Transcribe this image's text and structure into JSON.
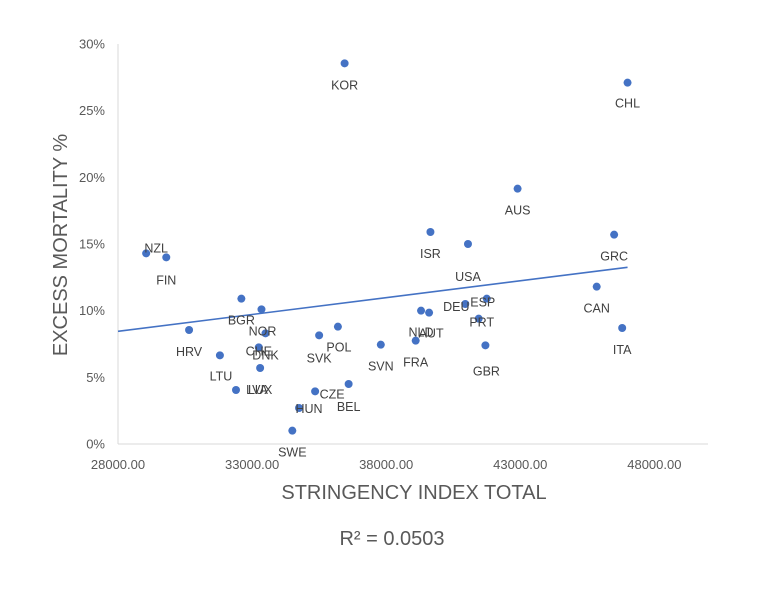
{
  "chart_data": {
    "type": "scatter",
    "xlabel": "STRINGENCY INDEX TOTAL",
    "ylabel": "EXCESS MORTALITY %",
    "xlim": [
      28000,
      50000
    ],
    "ylim": [
      0,
      0.3
    ],
    "x_ticks": [
      "28000.00",
      "33000.00",
      "38000.00",
      "43000.00",
      "48000.00"
    ],
    "y_ticks": [
      "0%",
      "5%",
      "10%",
      "15%",
      "20%",
      "25%",
      "30%"
    ],
    "trendline": {
      "x": [
        28000,
        47000
      ],
      "y": [
        0.0845,
        0.1325
      ]
    },
    "r_squared_label": "R² = 0.0503",
    "marker_color": "#4472c4",
    "line_color": "#4472c4",
    "points": [
      {
        "label": "KOR",
        "x": 36450,
        "y": 0.2855
      },
      {
        "label": "CHL",
        "x": 47000,
        "y": 0.271
      },
      {
        "label": "AUS",
        "x": 42900,
        "y": 0.1915
      },
      {
        "label": "ISR",
        "x": 39650,
        "y": 0.159
      },
      {
        "label": "USA",
        "x": 41050,
        "y": 0.15
      },
      {
        "label": "GRC",
        "x": 46500,
        "y": 0.157
      },
      {
        "label": "NZL",
        "x": 29050,
        "y": 0.143
      },
      {
        "label": "FIN",
        "x": 29800,
        "y": 0.14
      },
      {
        "label": "CAN",
        "x": 45850,
        "y": 0.118
      },
      {
        "label": "BGR",
        "x": 32600,
        "y": 0.109
      },
      {
        "label": "ESP",
        "x": 41750,
        "y": 0.109
      },
      {
        "label": "NOR",
        "x": 33350,
        "y": 0.101
      },
      {
        "label": "PRT",
        "x": 41450,
        "y": 0.094
      },
      {
        "label": "NLD",
        "x": 39300,
        "y": 0.1
      },
      {
        "label": "AUT",
        "x": 39600,
        "y": 0.0985
      },
      {
        "label": "ITA",
        "x": 46800,
        "y": 0.087
      },
      {
        "label": "POL",
        "x": 36200,
        "y": 0.088
      },
      {
        "label": "HRV",
        "x": 30650,
        "y": 0.0855
      },
      {
        "label": "SVK",
        "x": 35500,
        "y": 0.0815
      },
      {
        "label": "DNK",
        "x": 33500,
        "y": 0.083
      },
      {
        "label": "SVN",
        "x": 37800,
        "y": 0.0745
      },
      {
        "label": "FRA",
        "x": 39100,
        "y": 0.0775
      },
      {
        "label": "DEU",
        "x": 40950,
        "y": 0.105
      },
      {
        "label": "GBR",
        "x": 41700,
        "y": 0.074
      },
      {
        "label": "CHE",
        "x": 33250,
        "y": 0.0725
      },
      {
        "label": "LTU",
        "x": 31800,
        "y": 0.0665
      },
      {
        "label": "LUX",
        "x": 33300,
        "y": 0.057
      },
      {
        "label": "LVA",
        "x": 32400,
        "y": 0.0405
      },
      {
        "label": "BEL",
        "x": 36600,
        "y": 0.045
      },
      {
        "label": "CZE",
        "x": 35350,
        "y": 0.0395
      },
      {
        "label": "HUN",
        "x": 34750,
        "y": 0.027
      },
      {
        "label": "SWE",
        "x": 34500,
        "y": 0.01
      }
    ]
  }
}
